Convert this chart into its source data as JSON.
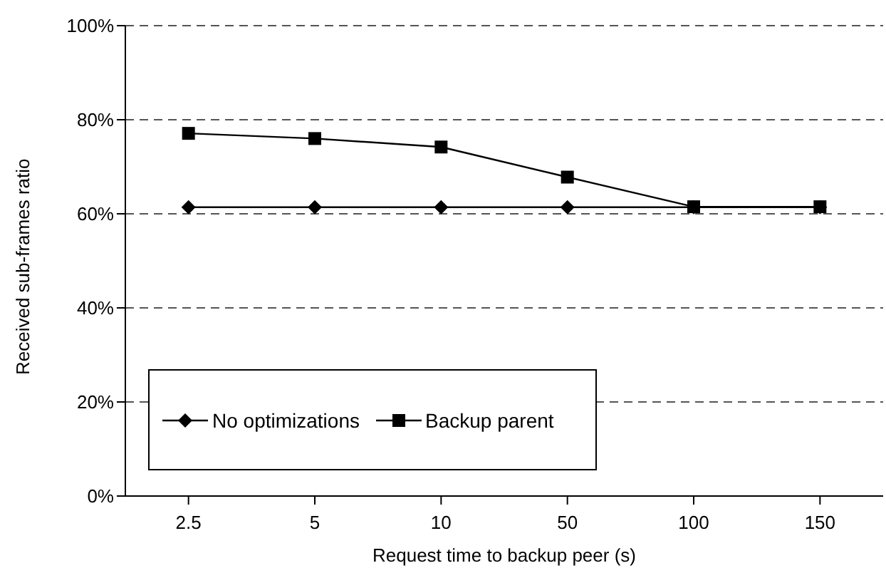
{
  "chart_data": {
    "type": "line",
    "xlabel": "Request time to backup peer (s)",
    "ylabel": "Received sub-frames ratio",
    "categories": [
      "2.5",
      "5",
      "10",
      "50",
      "100",
      "150"
    ],
    "series": [
      {
        "name": "No optimizations",
        "color": "#000000",
        "marker": "diamond",
        "values": [
          61.4,
          61.4,
          61.4,
          61.4,
          61.4,
          61.4
        ]
      },
      {
        "name": "Backup parent",
        "color": "#000000",
        "marker": "square",
        "values": [
          77.1,
          76.0,
          74.2,
          67.8,
          61.5,
          61.5
        ]
      }
    ],
    "ylim": [
      0,
      100
    ],
    "yticks": [
      {
        "value": 0,
        "label": "0%"
      },
      {
        "value": 20,
        "label": "20%"
      },
      {
        "value": 40,
        "label": "40%"
      },
      {
        "value": 60,
        "label": "60%"
      },
      {
        "value": 80,
        "label": "80%"
      },
      {
        "value": 100,
        "label": "100%"
      }
    ],
    "grid": "y",
    "line_style": "solid",
    "legend": "bottom left"
  }
}
